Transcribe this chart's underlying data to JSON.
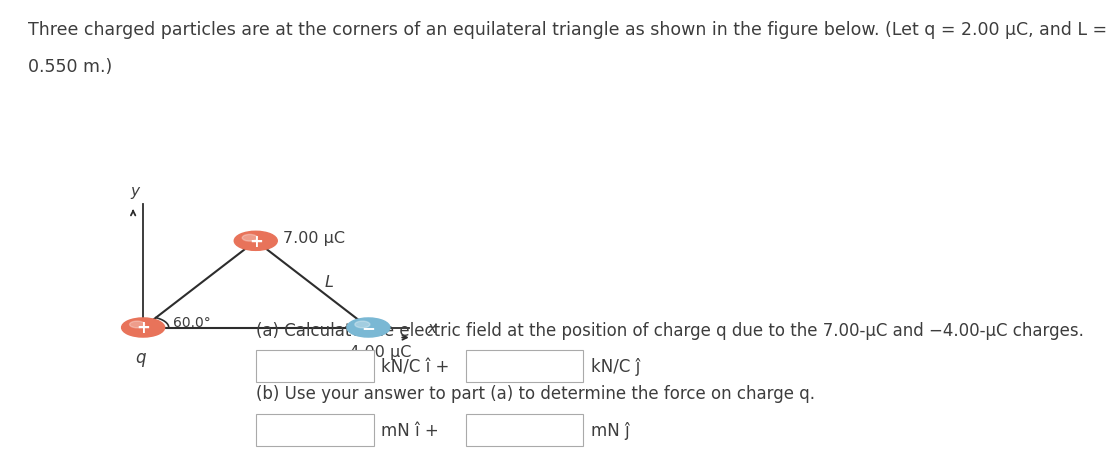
{
  "bg_color": "#ffffff",
  "line1": "Three charged particles are at the corners of an equilateral triangle as shown in the figure below. (Let q = 2.00 μC, and L =",
  "line2": "0.550 m.)",
  "title_fontsize": 12.5,
  "fig_width": 10.24,
  "fig_height": 4.55,
  "text_color": "#3d3d3d",
  "orange_color": "#E8735A",
  "blue_color": "#7ab8d4",
  "triangle_scale": 0.22,
  "tri_ox": 0.13,
  "tri_oy": 0.3,
  "part_a_text": "(a) Calculate the electric field at the position of charge q due to the 7.00-μC and −4.00-μC charges.",
  "part_b_text": "(b) Use your answer to part (a) to determine the force on charge q.",
  "knc_i": "kN/C î +",
  "knc_j": "kN/C ĵ",
  "mn_i": "mN î +",
  "mn_j": "mN ĵ"
}
